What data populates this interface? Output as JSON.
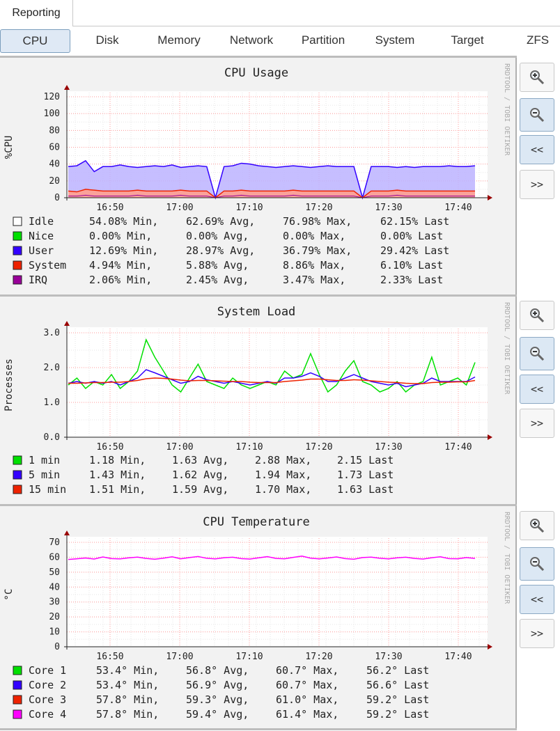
{
  "tabs": {
    "reporting": "Reporting"
  },
  "subnav": [
    "CPU",
    "Disk",
    "Memory",
    "Network",
    "Partition",
    "System",
    "Target",
    "ZFS"
  ],
  "active_subnav": "CPU",
  "watermark": "RRDTOOL / TOBI OETIKER",
  "side_buttons": {
    "back": "<<",
    "forward": ">>"
  },
  "icons": {
    "zoom_in": "zoom-in-icon",
    "zoom_out": "zoom-out-icon"
  },
  "colors": {
    "green": "#00e000",
    "blue": "#3300ff",
    "red": "#ee2200",
    "magenta": "#ff00ff",
    "purple": "#990099",
    "grid_major": "#ff9999",
    "axis": "#990000"
  },
  "time_ticks": [
    "16:50",
    "17:00",
    "17:10",
    "17:20",
    "17:30",
    "17:40"
  ],
  "chart_data": [
    {
      "type": "area",
      "title": "CPU Usage",
      "ylabel": "%CPU",
      "ylim": [
        0,
        120
      ],
      "yticks": [
        "120",
        "100",
        "80",
        "60",
        "40",
        "20",
        "0"
      ],
      "legend": [
        {
          "name": "Idle",
          "color": "#ffffff",
          "min": "54.08% Min,",
          "avg": "62.69% Avg,",
          "max": "76.98% Max,",
          "last": "62.15% Last"
        },
        {
          "name": "Nice",
          "color": "#00e000",
          "min": " 0.00% Min,",
          "avg": " 0.00% Avg,",
          "max": " 0.00% Max,",
          "last": " 0.00% Last"
        },
        {
          "name": "User",
          "color": "#3300ff",
          "min": "12.69% Min,",
          "avg": "28.97% Avg,",
          "max": "36.79% Max,",
          "last": "29.42% Last"
        },
        {
          "name": "System",
          "color": "#ee2200",
          "min": " 4.94% Min,",
          "avg": " 5.88% Avg,",
          "max": " 8.86% Max,",
          "last": " 6.10% Last"
        },
        {
          "name": "IRQ",
          "color": "#990099",
          "min": " 2.06% Min,",
          "avg": " 2.45% Avg,",
          "max": " 3.47% Max,",
          "last": " 2.33% Last"
        }
      ],
      "series": [
        {
          "name": "User",
          "values": [
            37,
            38,
            44,
            31,
            37,
            37,
            39,
            37,
            36,
            37,
            38,
            37,
            39,
            36,
            37,
            38,
            37,
            0,
            37,
            38,
            41,
            40,
            38,
            37,
            36,
            37,
            38,
            37,
            36,
            37,
            38,
            37,
            37,
            37,
            0,
            37,
            37,
            37,
            36,
            37,
            36,
            37,
            37,
            37,
            38,
            37,
            37,
            38
          ]
        },
        {
          "name": "System",
          "values": [
            8,
            7,
            10,
            9,
            8,
            8,
            8,
            8,
            9,
            8,
            8,
            8,
            8,
            9,
            8,
            8,
            8,
            0,
            8,
            8,
            9,
            8,
            8,
            8,
            8,
            8,
            9,
            8,
            8,
            8,
            8,
            8,
            8,
            8,
            0,
            8,
            8,
            8,
            9,
            8,
            8,
            8,
            8,
            8,
            8,
            8,
            8,
            8
          ]
        },
        {
          "name": "IRQ",
          "values": [
            2,
            2,
            3,
            2,
            2,
            2,
            2,
            2,
            3,
            2,
            2,
            2,
            2,
            3,
            2,
            2,
            2,
            0,
            2,
            2,
            3,
            2,
            2,
            2,
            2,
            2,
            3,
            2,
            2,
            2,
            2,
            2,
            2,
            2,
            0,
            2,
            2,
            2,
            3,
            2,
            2,
            2,
            2,
            2,
            2,
            2,
            2,
            2
          ]
        }
      ]
    },
    {
      "type": "line",
      "title": "System Load",
      "ylabel": "Processes",
      "ylim": [
        0,
        3
      ],
      "yticks": [
        "3.0",
        "2.0",
        "1.0",
        "0.0"
      ],
      "legend": [
        {
          "name": " 1 min",
          "color": "#00e000",
          "min": "1.18 Min,",
          "avg": "1.63 Avg,",
          "max": "2.88 Max,",
          "last": "2.15 Last"
        },
        {
          "name": " 5 min",
          "color": "#3300ff",
          "min": "1.43 Min,",
          "avg": "1.62 Avg,",
          "max": "1.94 Max,",
          "last": "1.73 Last"
        },
        {
          "name": "15 min",
          "color": "#ee2200",
          "min": "1.51 Min,",
          "avg": "1.59 Avg,",
          "max": "1.70 Max,",
          "last": "1.63 Last"
        }
      ],
      "series": [
        {
          "name": "1 min",
          "values": [
            1.5,
            1.7,
            1.4,
            1.6,
            1.5,
            1.8,
            1.4,
            1.6,
            1.9,
            2.8,
            2.3,
            1.9,
            1.5,
            1.3,
            1.7,
            2.1,
            1.6,
            1.5,
            1.4,
            1.7,
            1.5,
            1.4,
            1.5,
            1.6,
            1.5,
            1.9,
            1.7,
            1.8,
            2.4,
            1.8,
            1.3,
            1.5,
            1.9,
            2.2,
            1.6,
            1.5,
            1.3,
            1.4,
            1.6,
            1.3,
            1.5,
            1.6,
            2.3,
            1.5,
            1.6,
            1.7,
            1.5,
            2.15
          ]
        },
        {
          "name": "5 min",
          "values": [
            1.55,
            1.6,
            1.55,
            1.6,
            1.55,
            1.6,
            1.5,
            1.6,
            1.7,
            1.94,
            1.85,
            1.75,
            1.65,
            1.55,
            1.6,
            1.75,
            1.65,
            1.6,
            1.55,
            1.6,
            1.55,
            1.5,
            1.55,
            1.6,
            1.55,
            1.7,
            1.7,
            1.75,
            1.85,
            1.75,
            1.6,
            1.6,
            1.7,
            1.8,
            1.7,
            1.6,
            1.55,
            1.5,
            1.55,
            1.45,
            1.5,
            1.55,
            1.7,
            1.6,
            1.6,
            1.6,
            1.6,
            1.73
          ]
        },
        {
          "name": "15 min",
          "values": [
            1.55,
            1.55,
            1.56,
            1.57,
            1.57,
            1.58,
            1.58,
            1.6,
            1.63,
            1.68,
            1.7,
            1.69,
            1.67,
            1.64,
            1.62,
            1.63,
            1.63,
            1.62,
            1.61,
            1.6,
            1.6,
            1.58,
            1.57,
            1.57,
            1.57,
            1.6,
            1.62,
            1.64,
            1.67,
            1.67,
            1.65,
            1.63,
            1.63,
            1.65,
            1.64,
            1.62,
            1.6,
            1.58,
            1.57,
            1.55,
            1.54,
            1.54,
            1.57,
            1.58,
            1.58,
            1.59,
            1.59,
            1.63
          ]
        }
      ]
    },
    {
      "type": "line",
      "title": "CPU Temperature",
      "ylabel": "°C",
      "ylim": [
        0,
        70
      ],
      "yticks": [
        "70",
        "60",
        "50",
        "40",
        "30",
        "20",
        "10",
        "0"
      ],
      "legend": [
        {
          "name": "Core 1",
          "color": "#00e000",
          "min": "53.4° Min,",
          "avg": "56.8° Avg,",
          "max": "60.7° Max,",
          "last": "56.2° Last"
        },
        {
          "name": "Core 2",
          "color": "#3300ff",
          "min": "53.4° Min,",
          "avg": "56.9° Avg,",
          "max": "60.7° Max,",
          "last": "56.6° Last"
        },
        {
          "name": "Core 3",
          "color": "#ee2200",
          "min": "57.8° Min,",
          "avg": "59.3° Avg,",
          "max": "61.0° Max,",
          "last": "59.2° Last"
        },
        {
          "name": "Core 4",
          "color": "#ff00ff",
          "min": "57.8° Min,",
          "avg": "59.4° Avg,",
          "max": "61.4° Max,",
          "last": "59.2° Last"
        }
      ],
      "series": [
        {
          "name": "Core 4",
          "values": [
            58.5,
            59,
            59.5,
            58.8,
            60.2,
            59.1,
            58.9,
            59.6,
            60.1,
            59.2,
            58.7,
            59.4,
            60.3,
            59.0,
            59.8,
            60.5,
            59.3,
            58.9,
            59.7,
            60.0,
            59.1,
            58.8,
            59.6,
            60.4,
            59.2,
            59.0,
            59.9,
            60.8,
            59.4,
            58.9,
            59.5,
            60.2,
            59.1,
            58.7,
            59.8,
            60.1,
            59.3,
            58.9,
            59.6,
            60.0,
            59.2,
            58.8,
            59.7,
            60.3,
            59.1,
            59.0,
            59.8,
            59.2
          ]
        }
      ]
    }
  ]
}
